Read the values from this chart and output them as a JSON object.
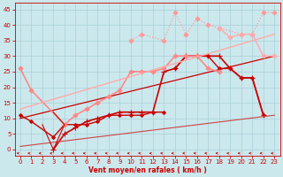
{
  "bg_color": "#cbe8ed",
  "grid_color": "#a8d0d8",
  "xlabel": "Vent moyen/en rafales ( km/h )",
  "xlabel_color": "#cc0000",
  "tick_color": "#cc0000",
  "xlim": [
    -0.5,
    23.5
  ],
  "ylim": [
    -2,
    47
  ],
  "yticks": [
    0,
    5,
    10,
    15,
    20,
    25,
    30,
    35,
    40,
    45
  ],
  "xticks": [
    0,
    1,
    2,
    3,
    4,
    5,
    6,
    7,
    8,
    9,
    10,
    11,
    12,
    13,
    14,
    15,
    16,
    17,
    18,
    19,
    20,
    21,
    22,
    23
  ],
  "lines": [
    {
      "x": [
        3,
        4,
        5,
        6,
        7,
        8,
        9,
        10,
        11,
        12,
        13,
        14,
        15,
        16,
        17,
        18,
        19,
        20,
        21,
        22
      ],
      "y": [
        0,
        5,
        7,
        9,
        10,
        11,
        12,
        12,
        12,
        12,
        25,
        26,
        30,
        30,
        30,
        30,
        26,
        23,
        23,
        11
      ],
      "color": "#cc0000",
      "lw": 1.2,
      "marker": "+",
      "ms": 4,
      "style": "-"
    },
    {
      "x": [
        0,
        1,
        3,
        4,
        5,
        6,
        7,
        8,
        9,
        10,
        11,
        12,
        13
      ],
      "y": [
        11,
        9,
        4,
        8,
        8,
        8,
        9,
        11,
        11,
        11,
        11,
        12,
        12
      ],
      "color": "#cc0000",
      "lw": 1.0,
      "marker": "D",
      "ms": 2,
      "style": "-"
    },
    {
      "x": [
        14,
        15,
        16,
        17,
        18,
        19,
        20,
        21,
        22
      ],
      "y": [
        26,
        30,
        30,
        30,
        26,
        26,
        23,
        23,
        11
      ],
      "color": "#cc0000",
      "lw": 1.0,
      "marker": "D",
      "ms": 2,
      "style": "-"
    },
    {
      "x": [
        0,
        23
      ],
      "y": [
        1,
        11
      ],
      "color": "#cc4444",
      "lw": 0.8,
      "marker": null,
      "ms": 0,
      "style": "-"
    },
    {
      "x": [
        0,
        23
      ],
      "y": [
        10,
        30
      ],
      "color": "#cc0000",
      "lw": 0.9,
      "marker": null,
      "ms": 0,
      "style": "-"
    },
    {
      "x": [
        0,
        1,
        4,
        5,
        6,
        7,
        8,
        9,
        10,
        11,
        12,
        13,
        14,
        15,
        16,
        17,
        18
      ],
      "y": [
        26,
        19,
        8,
        11,
        13,
        15,
        17,
        19,
        25,
        25,
        25,
        26,
        30,
        30,
        30,
        26,
        25
      ],
      "color": "#ff8888",
      "lw": 1.2,
      "marker": "D",
      "ms": 2.5,
      "style": "-"
    },
    {
      "x": [
        0,
        23
      ],
      "y": [
        13,
        37
      ],
      "color": "#ffaaaa",
      "lw": 1.0,
      "marker": null,
      "ms": 0,
      "style": "-"
    },
    {
      "x": [
        10,
        11,
        13,
        14,
        15,
        16,
        17,
        18,
        20,
        21,
        22,
        23
      ],
      "y": [
        35,
        37,
        35,
        44,
        37,
        42,
        40,
        39,
        37,
        37,
        44,
        44
      ],
      "color": "#ff9999",
      "lw": 0.9,
      "marker": "D",
      "ms": 2.5,
      "style": ":"
    },
    {
      "x": [
        18,
        19,
        20,
        21,
        22,
        23
      ],
      "y": [
        39,
        36,
        37,
        37,
        30,
        30
      ],
      "color": "#ffaaaa",
      "lw": 1.0,
      "marker": "D",
      "ms": 2.5,
      "style": "-"
    },
    {
      "x": [
        2,
        3,
        4,
        3
      ],
      "y": [
        8,
        0,
        8,
        12
      ],
      "color": "#cc0000",
      "lw": 0.8,
      "marker": null,
      "ms": 0,
      "style": "-"
    }
  ]
}
